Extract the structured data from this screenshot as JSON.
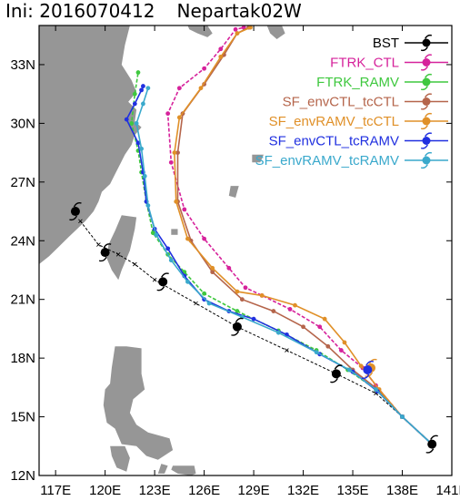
{
  "map": {
    "title_init": "Ini: 2016070412",
    "title_storm": "Nepartak02W",
    "x_ticks": [
      "117E",
      "120E",
      "123E",
      "126E",
      "129E",
      "132E",
      "135E",
      "138E",
      "141E"
    ],
    "y_ticks": [
      "12N",
      "15N",
      "18N",
      "21N",
      "24N",
      "27N",
      "30N",
      "33N"
    ],
    "x_range": [
      116,
      141
    ],
    "y_range": [
      12,
      35
    ],
    "land_color": "#969696"
  },
  "chart_data": {
    "type": "line",
    "x_range_lon": [
      116,
      141
    ],
    "y_range_lat": [
      12,
      35
    ],
    "series": [
      {
        "name": "BST",
        "color": "#000000",
        "points": [
          [
            139.8,
            13.6
          ],
          [
            138.0,
            15.0
          ],
          [
            136.4,
            16.2
          ],
          [
            134.0,
            17.2
          ],
          [
            131.0,
            18.4
          ],
          [
            128.0,
            19.6
          ],
          [
            125.5,
            20.8
          ],
          [
            123.0,
            22.0
          ],
          [
            121.8,
            22.8
          ],
          [
            120.8,
            23.3
          ],
          [
            119.6,
            23.8
          ],
          [
            118.5,
            25.0
          ]
        ]
      },
      {
        "name": "FTRK_CTL",
        "color": "#d6229b",
        "points": [
          [
            139.8,
            13.6
          ],
          [
            138.0,
            15.0
          ],
          [
            136.4,
            16.6
          ],
          [
            135.6,
            17.5
          ],
          [
            134.3,
            18.4
          ],
          [
            133.0,
            19.6
          ],
          [
            131.2,
            20.5
          ],
          [
            129.5,
            21.2
          ],
          [
            128.5,
            21.6
          ],
          [
            127.5,
            22.6
          ],
          [
            126.0,
            24.1
          ],
          [
            124.8,
            25.6
          ],
          [
            124.0,
            28.0
          ],
          [
            123.8,
            30.5
          ],
          [
            124.5,
            31.8
          ],
          [
            126.0,
            32.8
          ],
          [
            127.0,
            33.8
          ],
          [
            127.9,
            34.8
          ],
          [
            128.4,
            34.9
          ]
        ]
      },
      {
        "name": "FTRK_RAMV",
        "color": "#3fc83f",
        "points": [
          [
            139.8,
            13.6
          ],
          [
            138.0,
            15.0
          ],
          [
            136.4,
            16.4
          ],
          [
            134.7,
            17.4
          ],
          [
            132.8,
            18.4
          ],
          [
            130.5,
            19.4
          ],
          [
            128.0,
            20.4
          ],
          [
            126.0,
            21.3
          ],
          [
            124.8,
            22.4
          ],
          [
            123.8,
            23.3
          ],
          [
            122.9,
            24.4
          ],
          [
            122.5,
            26.0
          ],
          [
            122.2,
            27.5
          ],
          [
            122.0,
            28.6
          ],
          [
            121.6,
            30.0
          ],
          [
            121.8,
            31.5
          ],
          [
            122.0,
            32.6
          ]
        ]
      },
      {
        "name": "SF_envCTL_tcCTL",
        "color": "#b5654b",
        "points": [
          [
            139.8,
            13.6
          ],
          [
            138.0,
            15.0
          ],
          [
            136.5,
            16.4
          ],
          [
            135.0,
            17.4
          ],
          [
            133.5,
            18.6
          ],
          [
            132.0,
            19.6
          ],
          [
            130.2,
            20.4
          ],
          [
            128.3,
            21.0
          ],
          [
            126.5,
            22.4
          ],
          [
            125.2,
            24.0
          ],
          [
            124.4,
            26.0
          ],
          [
            124.4,
            28.5
          ],
          [
            124.7,
            30.5
          ],
          [
            126.0,
            32.0
          ],
          [
            127.2,
            33.5
          ],
          [
            128.0,
            34.6
          ],
          [
            128.7,
            34.9
          ]
        ]
      },
      {
        "name": "SF_envRAMV_tcCTL",
        "color": "#e09028",
        "points": [
          [
            139.8,
            13.6
          ],
          [
            138.0,
            15.0
          ],
          [
            136.6,
            16.4
          ],
          [
            135.5,
            17.6
          ],
          [
            134.5,
            18.8
          ],
          [
            133.3,
            20.0
          ],
          [
            131.5,
            20.7
          ],
          [
            129.5,
            21.2
          ],
          [
            128.0,
            21.4
          ],
          [
            126.5,
            22.6
          ],
          [
            125.0,
            24.1
          ],
          [
            124.3,
            26.0
          ],
          [
            124.2,
            28.5
          ],
          [
            124.5,
            30.3
          ],
          [
            125.8,
            31.8
          ],
          [
            127.0,
            33.4
          ],
          [
            128.0,
            34.6
          ],
          [
            128.8,
            34.9
          ]
        ]
      },
      {
        "name": "SF_envCTL_tcRAMV",
        "color": "#2030e0",
        "points": [
          [
            139.8,
            13.6
          ],
          [
            138.0,
            15.0
          ],
          [
            136.5,
            16.3
          ],
          [
            135.0,
            17.3
          ],
          [
            133.0,
            18.2
          ],
          [
            131.0,
            19.2
          ],
          [
            129.0,
            20.0
          ],
          [
            127.5,
            20.4
          ],
          [
            126.0,
            21.0
          ],
          [
            124.8,
            22.2
          ],
          [
            123.8,
            23.6
          ],
          [
            123.0,
            24.6
          ],
          [
            122.5,
            26.0
          ],
          [
            122.3,
            27.5
          ],
          [
            122.0,
            29.0
          ],
          [
            121.3,
            30.2
          ],
          [
            121.8,
            31.0
          ],
          [
            122.2,
            31.7
          ],
          [
            122.3,
            31.9
          ]
        ]
      },
      {
        "name": "SF_envRAMV_tcRAMV",
        "color": "#3aa9cc",
        "points": [
          [
            139.8,
            13.6
          ],
          [
            138.0,
            15.0
          ],
          [
            136.4,
            16.4
          ],
          [
            134.8,
            17.4
          ],
          [
            132.8,
            18.3
          ],
          [
            130.5,
            19.3
          ],
          [
            128.3,
            20.1
          ],
          [
            126.3,
            20.8
          ],
          [
            125.0,
            21.9
          ],
          [
            124.0,
            23.0
          ],
          [
            123.1,
            24.3
          ],
          [
            122.6,
            25.8
          ],
          [
            122.4,
            27.3
          ],
          [
            122.2,
            28.7
          ],
          [
            121.9,
            30.0
          ],
          [
            122.3,
            31.0
          ],
          [
            122.6,
            31.8
          ]
        ]
      }
    ],
    "typhoon_symbols": [
      [
        139.8,
        13.6
      ],
      [
        134.0,
        17.2
      ],
      [
        128.0,
        19.6
      ],
      [
        123.5,
        21.9
      ],
      [
        120.0,
        23.4
      ],
      [
        118.2,
        25.5
      ],
      [
        136.1,
        17.5
      ],
      [
        135.9,
        17.4
      ]
    ]
  }
}
